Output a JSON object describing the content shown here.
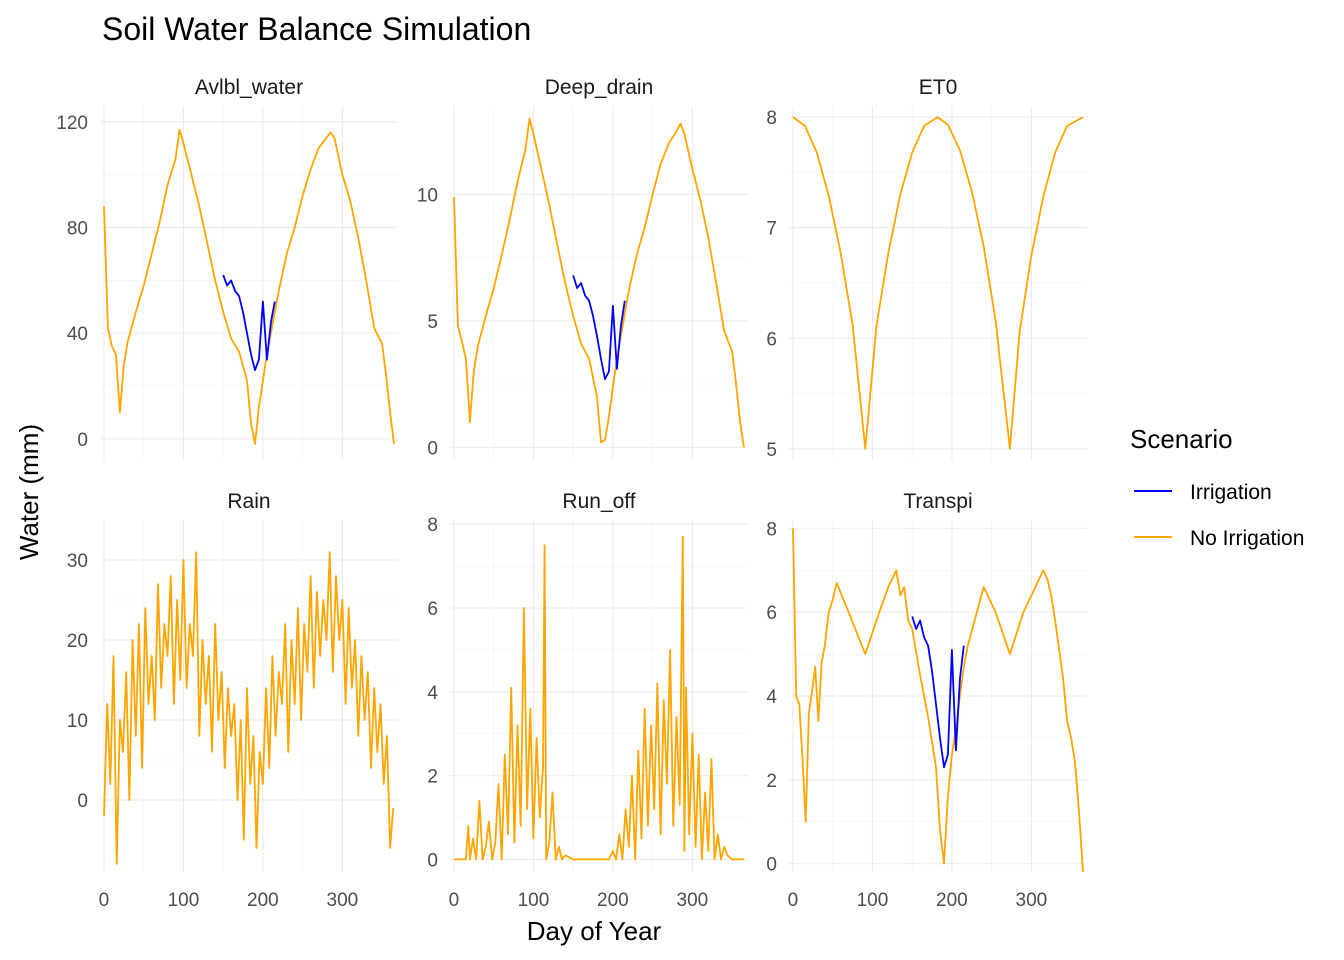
{
  "title": "Soil Water Balance Simulation",
  "chart_data": {
    "type": "line",
    "title": "Soil Water Balance Simulation",
    "xlabel": "Day of Year",
    "ylabel": "Water (mm)",
    "x_ticks": [
      0,
      100,
      200,
      300
    ],
    "xlim": [
      -5,
      370
    ],
    "grid": true,
    "legend": {
      "title": "Scenario",
      "position": "right",
      "entries": [
        {
          "name": "Irrigation",
          "color": "#0000ff"
        },
        {
          "name": "No Irrigation",
          "color": "#ffa500"
        }
      ]
    },
    "facets": [
      {
        "name": "Avlbl_water",
        "ylim": [
          -8,
          126
        ],
        "y_ticks": [
          0,
          40,
          80,
          120
        ],
        "series": [
          {
            "name": "No Irrigation",
            "color": "#ffa500",
            "x": [
              0,
              5,
              10,
              15,
              20,
              25,
              30,
              40,
              50,
              60,
              70,
              80,
              90,
              95,
              100,
              110,
              120,
              130,
              140,
              150,
              160,
              170,
              180,
              185,
              190,
              195,
              200,
              205,
              210,
              215,
              220,
              230,
              240,
              250,
              260,
              270,
              280,
              285,
              290,
              300,
              310,
              320,
              330,
              340,
              350,
              355,
              360,
              365
            ],
            "y": [
              88,
              42,
              35,
              32,
              10,
              28,
              37,
              48,
              58,
              70,
              82,
              96,
              106,
              117,
              112,
              100,
              88,
              74,
              60,
              48,
              38,
              33,
              22,
              6,
              -2,
              12,
              22,
              32,
              40,
              48,
              56,
              70,
              80,
              92,
              102,
              110,
              114,
              116,
              114,
              100,
              90,
              76,
              60,
              42,
              36,
              24,
              10,
              -2
            ]
          },
          {
            "name": "Irrigation",
            "color": "#0000ff",
            "x": [
              150,
              155,
              160,
              165,
              170,
              175,
              180,
              185,
              190,
              195,
              200,
              205,
              210,
              215
            ],
            "y": [
              62,
              58,
              60,
              56,
              54,
              48,
              40,
              32,
              26,
              30,
              52,
              30,
              44,
              52
            ]
          }
        ]
      },
      {
        "name": "Deep_drain",
        "ylim": [
          -0.5,
          13.5
        ],
        "y_ticks": [
          0,
          5,
          10
        ],
        "series": [
          {
            "name": "No Irrigation",
            "color": "#ffa500",
            "x": [
              0,
              5,
              10,
              15,
              20,
              25,
              30,
              40,
              50,
              60,
              70,
              80,
              90,
              95,
              100,
              110,
              120,
              130,
              140,
              150,
              160,
              170,
              180,
              185,
              190,
              195,
              200,
              205,
              210,
              215,
              220,
              230,
              240,
              250,
              260,
              270,
              280,
              285,
              290,
              300,
              310,
              320,
              330,
              340,
              350,
              355,
              360,
              365
            ],
            "y": [
              9.9,
              4.8,
              4.2,
              3.5,
              1.0,
              3.0,
              4.0,
              5.2,
              6.3,
              7.6,
              9.0,
              10.5,
              11.8,
              13.0,
              12.4,
              11.0,
              9.6,
              8.0,
              6.5,
              5.2,
              4.1,
              3.5,
              2.0,
              0.2,
              0.3,
              1.2,
              2.4,
              3.5,
              4.4,
              5.3,
              6.2,
              7.6,
              8.7,
              10.0,
              11.2,
              12.0,
              12.5,
              12.8,
              12.4,
              11.0,
              9.8,
              8.3,
              6.5,
              4.6,
              3.8,
              2.5,
              1.0,
              0.0
            ]
          },
          {
            "name": "Irrigation",
            "color": "#0000ff",
            "x": [
              150,
              155,
              160,
              165,
              170,
              175,
              180,
              185,
              190,
              195,
              200,
              205,
              210,
              215
            ],
            "y": [
              6.8,
              6.3,
              6.5,
              6.0,
              5.8,
              5.2,
              4.4,
              3.5,
              2.7,
              3.0,
              5.6,
              3.1,
              4.8,
              5.8
            ]
          }
        ]
      },
      {
        "name": "ET0",
        "ylim": [
          4.9,
          8.1
        ],
        "y_ticks": [
          5,
          6,
          7,
          8
        ],
        "series": [
          {
            "name": "No Irrigation",
            "color": "#ffa500",
            "x": [
              0,
              15,
              30,
              45,
              60,
              75,
              91,
              105,
              120,
              135,
              150,
              165,
              182,
              195,
              210,
              225,
              240,
              255,
              273,
              285,
              300,
              315,
              330,
              345,
              365
            ],
            "y": [
              8.0,
              7.92,
              7.68,
              7.29,
              6.77,
              6.12,
              5.0,
              6.11,
              6.77,
              7.3,
              7.68,
              7.92,
              8.0,
              7.93,
              7.7,
              7.33,
              6.83,
              6.16,
              5.0,
              6.05,
              6.75,
              7.28,
              7.68,
              7.92,
              8.0
            ]
          }
        ]
      },
      {
        "name": "Rain",
        "ylim": [
          -9,
          35
        ],
        "y_ticks": [
          0,
          10,
          20,
          30
        ],
        "series": [
          {
            "name": "No Irrigation",
            "color": "#ffa500",
            "x": [
              0,
              4,
              8,
              12,
              16,
              20,
              24,
              28,
              32,
              36,
              40,
              44,
              48,
              52,
              56,
              60,
              64,
              68,
              72,
              76,
              80,
              84,
              88,
              92,
              96,
              100,
              104,
              108,
              112,
              116,
              120,
              124,
              128,
              132,
              136,
              140,
              144,
              148,
              152,
              156,
              160,
              164,
              168,
              172,
              176,
              180,
              184,
              188,
              192,
              196,
              200,
              204,
              208,
              212,
              216,
              220,
              224,
              228,
              232,
              236,
              240,
              244,
              248,
              252,
              256,
              260,
              264,
              268,
              272,
              276,
              280,
              284,
              288,
              292,
              296,
              300,
              304,
              308,
              312,
              316,
              320,
              324,
              328,
              332,
              336,
              340,
              344,
              348,
              352,
              356,
              360,
              364
            ],
            "y": [
              -2,
              12,
              2,
              18,
              -8,
              10,
              6,
              16,
              0,
              20,
              8,
              22,
              4,
              24,
              12,
              18,
              10,
              27,
              14,
              22,
              18,
              28,
              12,
              25,
              15,
              30,
              14,
              22,
              18,
              31,
              8,
              20,
              12,
              18,
              6,
              22,
              10,
              16,
              4,
              14,
              8,
              12,
              0,
              10,
              -5,
              14,
              2,
              8,
              -6,
              6,
              2,
              14,
              4,
              18,
              8,
              16,
              12,
              22,
              6,
              20,
              12,
              24,
              10,
              22,
              16,
              28,
              14,
              26,
              18,
              25,
              20,
              31,
              16,
              28,
              20,
              25,
              12,
              24,
              14,
              20,
              8,
              18,
              10,
              16,
              4,
              14,
              6,
              12,
              2,
              8,
              -6,
              -1
            ]
          }
        ]
      },
      {
        "name": "Run_off",
        "ylim": [
          -0.3,
          8.1
        ],
        "y_ticks": [
          0,
          2,
          4,
          6,
          8
        ],
        "series": [
          {
            "name": "No Irrigation",
            "color": "#ffa500",
            "x": [
              0,
              5,
              10,
              15,
              18,
              20,
              24,
              28,
              32,
              36,
              40,
              44,
              48,
              52,
              56,
              60,
              64,
              68,
              72,
              76,
              80,
              84,
              88,
              92,
              96,
              100,
              104,
              108,
              112,
              114,
              116,
              120,
              124,
              128,
              132,
              136,
              140,
              150,
              160,
              170,
              180,
              190,
              195,
              200,
              204,
              208,
              212,
              216,
              220,
              224,
              228,
              232,
              236,
              240,
              244,
              248,
              252,
              256,
              260,
              264,
              268,
              272,
              276,
              280,
              284,
              288,
              290,
              292,
              296,
              300,
              304,
              308,
              312,
              316,
              320,
              324,
              328,
              332,
              336,
              340,
              344,
              350,
              360,
              365
            ],
            "y": [
              0,
              0,
              0,
              0,
              0.8,
              0,
              0.5,
              0,
              1.4,
              0,
              0.3,
              0.9,
              0,
              0.4,
              1.8,
              0,
              2.5,
              0.6,
              4.1,
              0.4,
              3.2,
              0.8,
              6.0,
              1.2,
              3.6,
              0.5,
              2.9,
              1.0,
              2.2,
              7.5,
              0,
              0.4,
              1.6,
              0,
              0.3,
              0,
              0.1,
              0,
              0,
              0,
              0,
              0,
              0,
              0.2,
              0,
              0.6,
              0,
              1.2,
              0.3,
              2.0,
              0,
              2.6,
              0.5,
              3.6,
              0.8,
              3.2,
              1.2,
              4.2,
              0.6,
              3.8,
              1.8,
              5.0,
              0.8,
              3.4,
              1.3,
              7.7,
              0.2,
              4.1,
              0.6,
              3.0,
              0.3,
              2.5,
              0,
              1.6,
              0.2,
              2.4,
              0,
              0.6,
              0,
              0.3,
              0.1,
              0,
              0,
              0
            ]
          }
        ]
      },
      {
        "name": "Transpi",
        "ylim": [
          -0.2,
          8.2
        ],
        "y_ticks": [
          0,
          2,
          4,
          6,
          8
        ],
        "series": [
          {
            "name": "No Irrigation",
            "color": "#ffa500",
            "x": [
              0,
              4,
              8,
              12,
              16,
              20,
              24,
              28,
              32,
              36,
              40,
              45,
              50,
              55,
              70,
              91,
              105,
              120,
              130,
              135,
              140,
              145,
              150,
              160,
              170,
              180,
              185,
              190,
              195,
              200,
              205,
              210,
              215,
              220,
              230,
              240,
              255,
              273,
              290,
              315,
              320,
              325,
              330,
              340,
              345,
              350,
              355,
              360,
              365
            ],
            "y": [
              8.0,
              4.0,
              3.8,
              2.5,
              1.0,
              3.6,
              4.1,
              4.7,
              3.4,
              4.8,
              5.2,
              6.0,
              6.3,
              6.7,
              6.0,
              5.0,
              5.8,
              6.6,
              7.0,
              6.4,
              6.6,
              5.8,
              5.6,
              4.5,
              3.5,
              2.3,
              0.8,
              0.0,
              1.6,
              2.6,
              3.2,
              4.0,
              4.7,
              5.2,
              5.9,
              6.6,
              6.0,
              5.0,
              6.0,
              7.0,
              6.8,
              6.4,
              5.8,
              4.4,
              3.4,
              3.0,
              2.4,
              1.2,
              -0.2
            ]
          },
          {
            "name": "Irrigation",
            "color": "#0000ff",
            "x": [
              150,
              155,
              160,
              165,
              170,
              175,
              180,
              185,
              190,
              195,
              200,
              205,
              210,
              215
            ],
            "y": [
              5.9,
              5.6,
              5.8,
              5.4,
              5.2,
              4.6,
              3.8,
              3.0,
              2.3,
              2.6,
              5.1,
              2.7,
              4.4,
              5.2
            ]
          }
        ]
      }
    ]
  }
}
